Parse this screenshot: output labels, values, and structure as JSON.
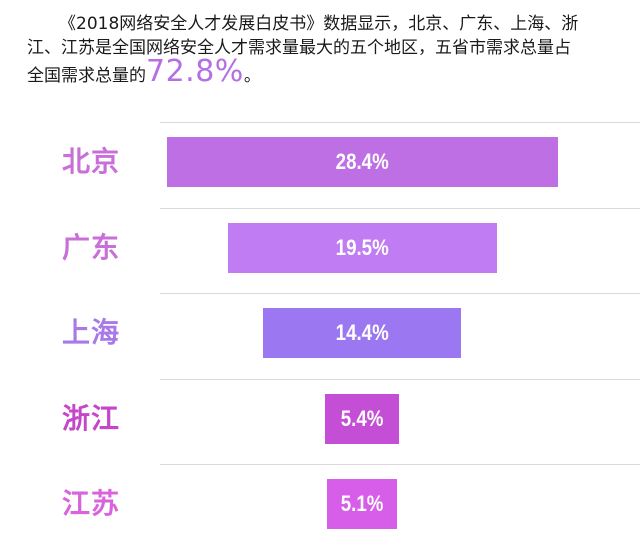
{
  "intro": {
    "line1": "《2018网络安全人才发展白皮书》数据显示，北京、广东、上海、浙",
    "line2": "江、江苏是全国网络安全人才需求量最大的五个地区，五省市需求总量占",
    "line3_prefix": "全国需求总量的",
    "highlight": "72.8%",
    "line3_suffix": "。"
  },
  "colors": {
    "highlight": "#b56fe3",
    "separator": "#d9d9d9"
  },
  "chart_data": {
    "type": "bar",
    "categories": [
      "北京",
      "广东",
      "上海",
      "浙江",
      "江苏"
    ],
    "values": [
      28.4,
      19.5,
      14.4,
      5.4,
      5.1
    ],
    "value_labels": [
      "28.4%",
      "19.5%",
      "14.4%",
      "5.4%",
      "5.1%"
    ],
    "label_colors": [
      "#c96fd8",
      "#c96fd8",
      "#a77ae8",
      "#c547c9",
      "#d962dd"
    ],
    "bar_colors": [
      "#bf6fe4",
      "#c07cf3",
      "#9b77f2",
      "#c44fd6",
      "#d75ee9"
    ],
    "orientation": "horizontal-centered",
    "title": "",
    "xlabel": "",
    "ylabel": "",
    "grid": false,
    "legend": "none"
  }
}
